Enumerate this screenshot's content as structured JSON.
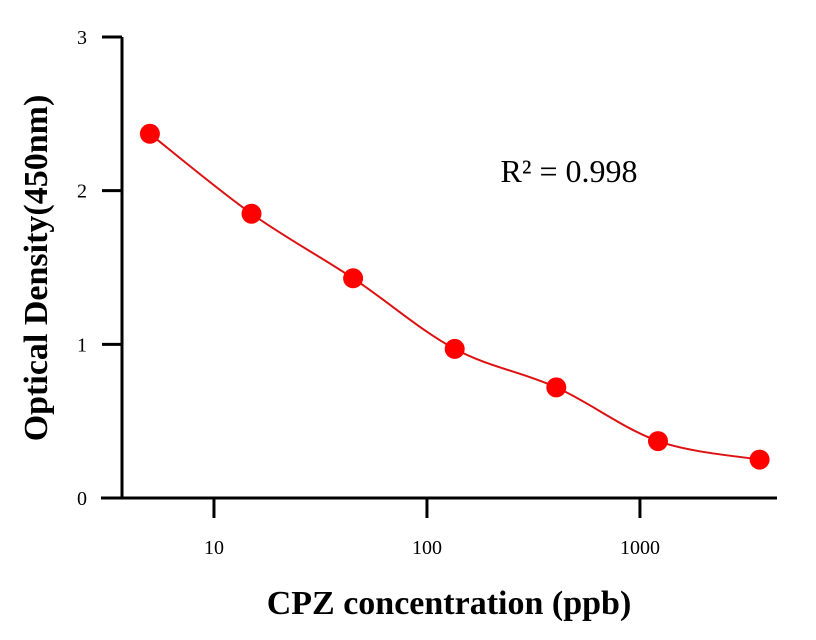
{
  "chart_data": {
    "type": "scatter",
    "title": "",
    "xlabel": "CPZ concentration (ppb)",
    "ylabel": "Optical Density(450nm)",
    "x_scale": "log",
    "xlim": [
      3.7,
      4400
    ],
    "ylim": [
      0,
      3
    ],
    "x_ticks": [
      10,
      100,
      1000
    ],
    "x_tick_labels": [
      "10",
      "100",
      "1000"
    ],
    "y_ticks": [
      0,
      1,
      2,
      3
    ],
    "y_tick_labels": [
      "0",
      "1",
      "2",
      "3"
    ],
    "grid": false,
    "legend": "none",
    "series": [
      {
        "marker": "circle",
        "line": "fitted curve",
        "color": "#ff0000",
        "line_color": "#dd1111",
        "x": [
          5,
          15,
          45,
          135,
          405,
          1215,
          3645
        ],
        "y": [
          2.37,
          1.85,
          1.43,
          0.97,
          0.72,
          0.37,
          0.25
        ]
      }
    ],
    "annotations": [
      {
        "text": "R² = 0.998"
      }
    ]
  }
}
